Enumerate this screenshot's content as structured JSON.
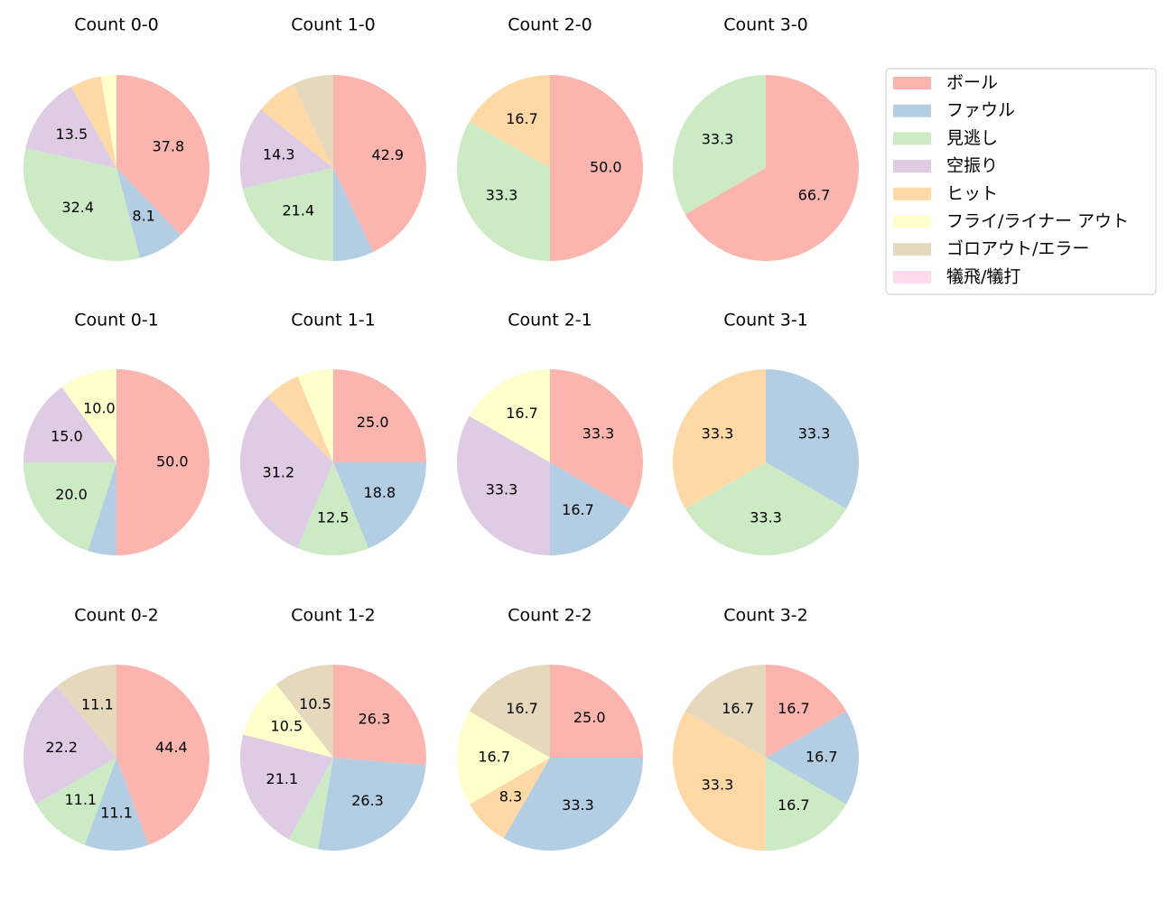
{
  "legend": {
    "entries": [
      {
        "name": "ボール",
        "color": "#fbb4ae"
      },
      {
        "name": "ファウル",
        "color": "#b3cde3"
      },
      {
        "name": "見逃し",
        "color": "#ccebc5"
      },
      {
        "name": "空振り",
        "color": "#decbe4"
      },
      {
        "name": "ヒット",
        "color": "#fed9a6"
      },
      {
        "name": "フライ/ライナー アウト",
        "color": "#ffffcc"
      },
      {
        "name": "ゴロアウト/エラー",
        "color": "#e5d8bd"
      },
      {
        "name": "犠飛/犠打",
        "color": "#fddaec"
      }
    ]
  },
  "chart_data": [
    {
      "type": "pie",
      "title": "Count 0-0",
      "values": [
        37.8,
        8.1,
        32.4,
        13.5,
        5.4,
        2.7,
        0,
        0
      ],
      "value_labels": [
        "37.8",
        "8.1",
        "32.4",
        "13.5",
        null,
        null,
        null,
        null
      ]
    },
    {
      "type": "pie",
      "title": "Count 1-0",
      "values": [
        42.9,
        7.1,
        21.4,
        14.3,
        7.1,
        0,
        7.1,
        0
      ],
      "value_labels": [
        "42.9",
        null,
        "21.4",
        "14.3",
        null,
        null,
        null,
        null
      ]
    },
    {
      "type": "pie",
      "title": "Count 2-0",
      "values": [
        50,
        0,
        33.3,
        0,
        16.7,
        0,
        0,
        0
      ],
      "value_labels": [
        "50.0",
        null,
        "33.3",
        null,
        "16.7",
        null,
        null,
        null
      ]
    },
    {
      "type": "pie",
      "title": "Count 3-0",
      "values": [
        66.7,
        0,
        33.3,
        0,
        0,
        0,
        0,
        0
      ],
      "value_labels": [
        "66.7",
        null,
        "33.3",
        null,
        null,
        null,
        null,
        null
      ]
    },
    {
      "type": "pie",
      "title": "Count 0-1",
      "values": [
        50,
        5,
        20,
        15,
        0,
        10,
        0,
        0
      ],
      "value_labels": [
        "50.0",
        null,
        "20.0",
        "15.0",
        null,
        "10.0",
        null,
        null
      ]
    },
    {
      "type": "pie",
      "title": "Count 1-1",
      "values": [
        25,
        18.8,
        12.5,
        31.2,
        6.25,
        6.25,
        0,
        0
      ],
      "value_labels": [
        "25.0",
        "18.8",
        "12.5",
        "31.2",
        null,
        null,
        null,
        null
      ]
    },
    {
      "type": "pie",
      "title": "Count 2-1",
      "values": [
        33.3,
        16.7,
        0,
        33.3,
        0,
        16.7,
        0,
        0
      ],
      "value_labels": [
        "33.3",
        "16.7",
        null,
        "33.3",
        null,
        "16.7",
        null,
        null
      ]
    },
    {
      "type": "pie",
      "title": "Count 3-1",
      "values": [
        0,
        33.3,
        33.3,
        0,
        33.3,
        0,
        0,
        0
      ],
      "value_labels": [
        null,
        "33.3",
        "33.3",
        null,
        "33.3",
        null,
        null,
        null
      ]
    },
    {
      "type": "pie",
      "title": "Count 0-2",
      "values": [
        44.4,
        11.1,
        11.1,
        22.2,
        0,
        0,
        11.1,
        0
      ],
      "value_labels": [
        "44.4",
        "11.1",
        "11.1",
        "22.2",
        null,
        null,
        "11.1",
        null
      ]
    },
    {
      "type": "pie",
      "title": "Count 1-2",
      "values": [
        26.3,
        26.3,
        5.3,
        21.1,
        0,
        10.5,
        10.5,
        0
      ],
      "value_labels": [
        "26.3",
        "26.3",
        null,
        "21.1",
        null,
        "10.5",
        "10.5",
        null
      ]
    },
    {
      "type": "pie",
      "title": "Count 2-2",
      "values": [
        25,
        33.3,
        0,
        0,
        8.3,
        16.7,
        16.7,
        0
      ],
      "value_labels": [
        "25.0",
        "33.3",
        null,
        null,
        "8.3",
        "16.7",
        "16.7",
        null
      ]
    },
    {
      "type": "pie",
      "title": "Count 3-2",
      "values": [
        16.7,
        16.7,
        16.7,
        0,
        33.3,
        0,
        16.7,
        0
      ],
      "value_labels": [
        "16.7",
        "16.7",
        "16.7",
        null,
        "33.3",
        null,
        "16.7",
        null
      ]
    }
  ]
}
